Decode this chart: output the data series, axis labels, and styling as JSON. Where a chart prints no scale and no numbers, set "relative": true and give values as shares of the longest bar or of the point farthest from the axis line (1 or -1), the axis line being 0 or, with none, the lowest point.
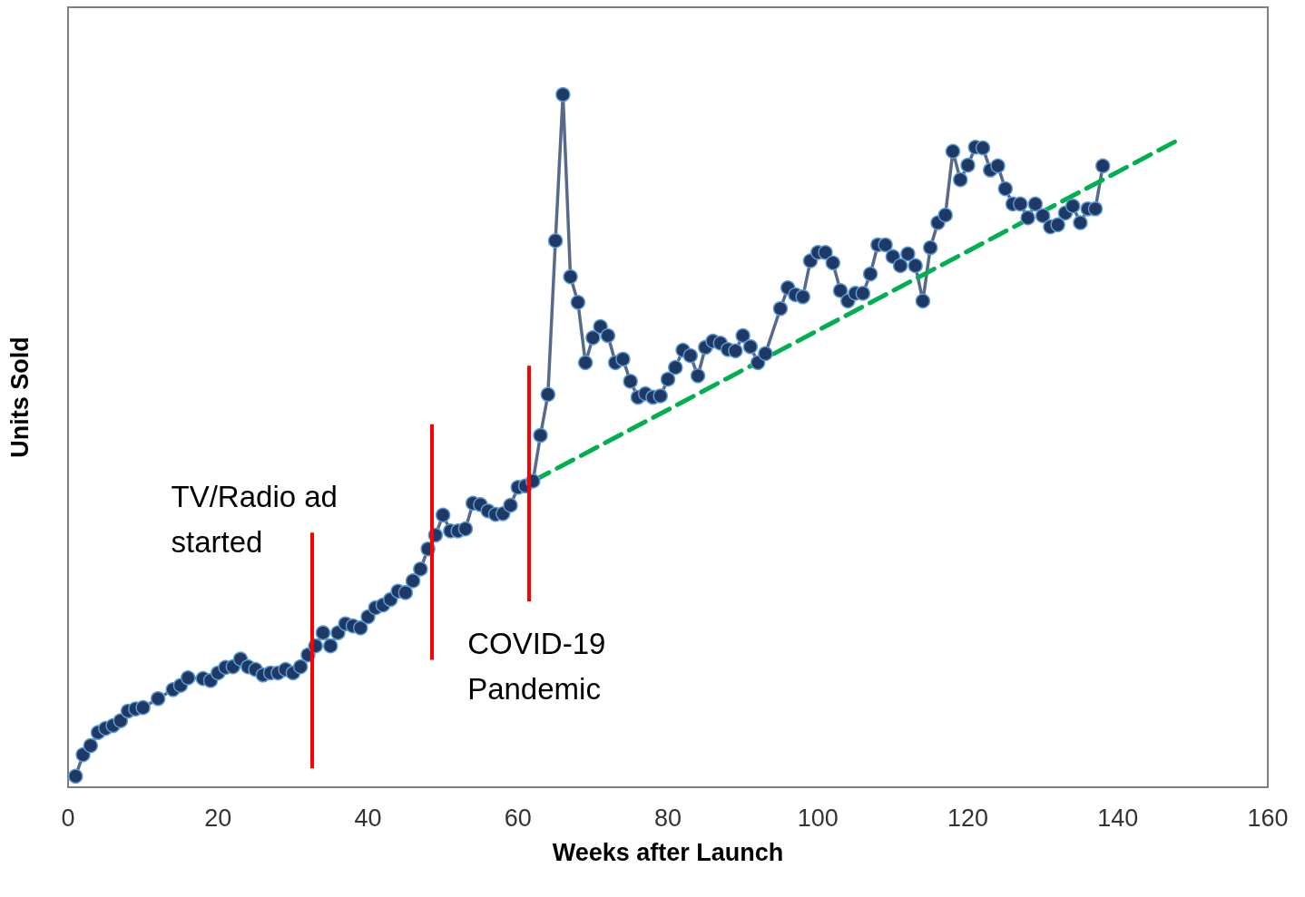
{
  "chart_data": {
    "type": "line",
    "xlabel": "Weeks after Launch",
    "ylabel": "Units Sold",
    "relative": true,
    "xlim": [
      0,
      160
    ],
    "xticks": [
      0,
      20,
      40,
      60,
      80,
      100,
      120,
      140,
      160
    ],
    "grid": false,
    "series": [
      {
        "color": "#1f3864",
        "marker": "circle",
        "line_style": "solid",
        "x": [
          1,
          2,
          3,
          4,
          5,
          6,
          7,
          8,
          9,
          10,
          12,
          14,
          15,
          16,
          18,
          19,
          20,
          21,
          22,
          23,
          24,
          25,
          26,
          27,
          28,
          29,
          30,
          31,
          32,
          33,
          34,
          35,
          36,
          37,
          38,
          39,
          40,
          41,
          42,
          43,
          44,
          45,
          46,
          47,
          48,
          49,
          50,
          51,
          52,
          53,
          54,
          55,
          56,
          57,
          58,
          59,
          60,
          61,
          62,
          63,
          64,
          65,
          66,
          67,
          68,
          69,
          70,
          71,
          72,
          73,
          74,
          75,
          76,
          77,
          78,
          79,
          80,
          81,
          82,
          83,
          84,
          85,
          86,
          87,
          88,
          89,
          90,
          91,
          92,
          93,
          95,
          96,
          97,
          98,
          99,
          100,
          101,
          102,
          103,
          104,
          105,
          106,
          107,
          108,
          109,
          110,
          111,
          112,
          113,
          114,
          115,
          116,
          117,
          118,
          119,
          120,
          121,
          122,
          123,
          124,
          125,
          126,
          127,
          128,
          129,
          130,
          131,
          132,
          133,
          134,
          135,
          136,
          137,
          138
        ],
        "values": [
          0.016,
          0.047,
          0.06,
          0.079,
          0.085,
          0.089,
          0.096,
          0.11,
          0.113,
          0.115,
          0.128,
          0.141,
          0.147,
          0.158,
          0.157,
          0.154,
          0.165,
          0.173,
          0.174,
          0.185,
          0.174,
          0.17,
          0.162,
          0.165,
          0.165,
          0.17,
          0.165,
          0.174,
          0.191,
          0.204,
          0.223,
          0.204,
          0.223,
          0.236,
          0.233,
          0.23,
          0.246,
          0.259,
          0.263,
          0.271,
          0.283,
          0.281,
          0.298,
          0.315,
          0.344,
          0.364,
          0.393,
          0.37,
          0.37,
          0.373,
          0.41,
          0.408,
          0.399,
          0.394,
          0.395,
          0.407,
          0.433,
          0.435,
          0.442,
          0.508,
          0.567,
          0.789,
          1,
          0.737,
          0.7,
          0.613,
          0.649,
          0.665,
          0.652,
          0.613,
          0.618,
          0.586,
          0.563,
          0.568,
          0.563,
          0.565,
          0.589,
          0.606,
          0.631,
          0.623,
          0.594,
          0.635,
          0.644,
          0.641,
          0.632,
          0.63,
          0.652,
          0.636,
          0.613,
          0.626,
          0.691,
          0.721,
          0.711,
          0.708,
          0.76,
          0.772,
          0.772,
          0.757,
          0.717,
          0.702,
          0.713,
          0.713,
          0.741,
          0.783,
          0.783,
          0.766,
          0.753,
          0.77,
          0.753,
          0.702,
          0.779,
          0.815,
          0.826,
          0.918,
          0.877,
          0.898,
          0.924,
          0.923,
          0.891,
          0.897,
          0.864,
          0.842,
          0.842,
          0.822,
          0.842,
          0.825,
          0.809,
          0.812,
          0.829,
          0.839,
          0.815,
          0.835,
          0.835,
          0.897
        ]
      },
      {
        "type": "line",
        "color": "#00b050",
        "marker": "none",
        "line_style": "dashed",
        "x": [
          62,
          148.5
        ],
        "values": [
          0.442,
          0.937
        ]
      }
    ],
    "ref_lines": [
      {
        "axis": "x",
        "value": 32.5,
        "label": "TV/Radio ad\nstarted",
        "color": "#ff0000"
      },
      {
        "axis": "x",
        "value": 48.5,
        "color": "#ff0000"
      },
      {
        "axis": "x",
        "value": 61.5,
        "label": "COVID-19\nPandemic",
        "color": "#ff0000"
      }
    ]
  }
}
